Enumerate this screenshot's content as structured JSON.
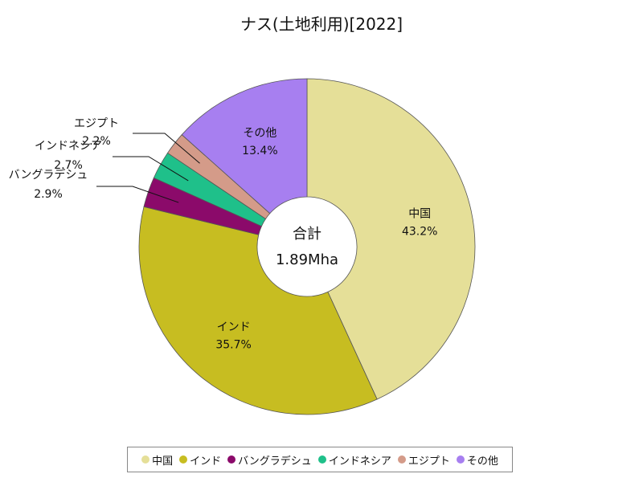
{
  "chart_data": {
    "type": "pie",
    "title": "ナス(土地利用)[2022]",
    "center_label": "合計",
    "center_value": "1.89Mha",
    "legend_position": "bottom",
    "slices": [
      {
        "name": "中国",
        "value": 43.2,
        "pct_label": "43.2%",
        "color": "#e5df98",
        "label_mode": "inside"
      },
      {
        "name": "インド",
        "value": 35.7,
        "pct_label": "35.7%",
        "color": "#c7bd21",
        "label_mode": "inside"
      },
      {
        "name": "バングラデシュ",
        "value": 2.9,
        "pct_label": "2.9%",
        "color": "#8b0a6a",
        "label_mode": "outside"
      },
      {
        "name": "インドネシア",
        "value": 2.7,
        "pct_label": "2.7%",
        "color": "#1fc08a",
        "label_mode": "outside"
      },
      {
        "name": "エジプト",
        "value": 2.2,
        "pct_label": "2.2%",
        "color": "#d49b89",
        "label_mode": "outside"
      },
      {
        "name": "その他",
        "value": 13.4,
        "pct_label": "13.4%",
        "color": "#a77ff0",
        "label_mode": "inside"
      }
    ]
  }
}
